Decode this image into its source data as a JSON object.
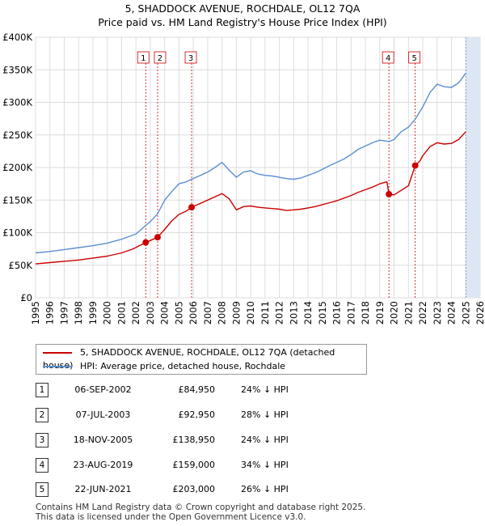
{
  "header": {
    "title_line1": "5, SHADDOCK AVENUE, ROCHDALE, OL12 7QA",
    "title_line2": "Price paid vs. HM Land Registry's House Price Index (HPI)"
  },
  "legend": {
    "series1": "5, SHADDOCK AVENUE, ROCHDALE, OL12 7QA (detached house)",
    "series2": "HPI: Average price, detached house, Rochdale"
  },
  "colors": {
    "price": "#cc0000",
    "hpi": "#5b8fd2",
    "shade": "#dde6f3",
    "grid": "#dddddd"
  },
  "transactions": [
    {
      "num": "1",
      "date": "06-SEP-2002",
      "price": "£84,950",
      "hpi": "24% ↓ HPI"
    },
    {
      "num": "2",
      "date": "07-JUL-2003",
      "price": "£92,950",
      "hpi": "28% ↓ HPI"
    },
    {
      "num": "3",
      "date": "18-NOV-2005",
      "price": "£138,950",
      "hpi": "24% ↓ HPI"
    },
    {
      "num": "4",
      "date": "23-AUG-2019",
      "price": "£159,000",
      "hpi": "34% ↓ HPI"
    },
    {
      "num": "5",
      "date": "22-JUN-2021",
      "price": "£203,000",
      "hpi": "26% ↓ HPI"
    }
  ],
  "footer": {
    "line1": "Contains HM Land Registry data © Crown copyright and database right 2025.",
    "line2": "This data is licensed under the Open Government Licence v3.0."
  },
  "chart_data": {
    "type": "line",
    "title": "5, SHADDOCK AVENUE, ROCHDALE, OL12 7QA — Price paid vs. HM Land Registry's House Price Index (HPI)",
    "xlim": [
      1995,
      2026
    ],
    "ylim": [
      0,
      400000
    ],
    "ytick_values": [
      0,
      50000,
      100000,
      150000,
      200000,
      250000,
      300000,
      350000,
      400000
    ],
    "ytick_labels": [
      "£0",
      "£50K",
      "£100K",
      "£150K",
      "£200K",
      "£250K",
      "£300K",
      "£350K",
      "£400K"
    ],
    "xtick_labels": [
      "1995",
      "1996",
      "1997",
      "1998",
      "1999",
      "2000",
      "2001",
      "2002",
      "2003",
      "2004",
      "2005",
      "2006",
      "2007",
      "2008",
      "2009",
      "2010",
      "2011",
      "2012",
      "2013",
      "2014",
      "2015",
      "2016",
      "2017",
      "2018",
      "2019",
      "2020",
      "2021",
      "2022",
      "2023",
      "2024",
      "2025",
      "2026"
    ],
    "future_shade_from": 2025.0,
    "series": [
      {
        "name": "5, SHADDOCK AVENUE, ROCHDALE, OL12 7QA (detached house)",
        "x": [
          1995.0,
          1996.0,
          1997.0,
          1998.0,
          1999.0,
          2000.0,
          2001.0,
          2001.8,
          2002.68,
          2003.0,
          2003.51,
          2004.0,
          2004.5,
          2005.0,
          2005.5,
          2005.88,
          2006.5,
          2007.0,
          2007.5,
          2008.0,
          2008.5,
          2009.0,
          2009.5,
          2010.0,
          2010.5,
          2011.0,
          2011.5,
          2012.0,
          2012.5,
          2013.0,
          2013.5,
          2014.0,
          2014.5,
          2015.0,
          2015.5,
          2016.0,
          2016.5,
          2017.0,
          2017.5,
          2018.0,
          2018.5,
          2019.0,
          2019.5,
          2019.64,
          2020.0,
          2020.5,
          2021.0,
          2021.47,
          2021.8,
          2022.0,
          2022.5,
          2023.0,
          2023.5,
          2024.0,
          2024.5,
          2025.0
        ],
        "y": [
          52000,
          54000,
          56000,
          58000,
          61000,
          64000,
          69000,
          75000,
          84950,
          88000,
          92950,
          105000,
          118000,
          128000,
          133000,
          138950,
          145000,
          150000,
          155000,
          160000,
          152000,
          135000,
          140000,
          141000,
          139000,
          138000,
          137000,
          136000,
          134000,
          135000,
          136000,
          138000,
          140000,
          143000,
          146000,
          149000,
          153000,
          157000,
          162000,
          166000,
          170000,
          175000,
          178000,
          159000,
          158000,
          165000,
          172000,
          203000,
          210000,
          218000,
          232000,
          238000,
          236000,
          237000,
          243000,
          255000
        ]
      },
      {
        "name": "HPI: Average price, detached house, Rochdale",
        "x": [
          1995.0,
          1996.0,
          1997.0,
          1998.0,
          1999.0,
          2000.0,
          2001.0,
          2002.0,
          2002.68,
          2003.0,
          2003.51,
          2004.0,
          2004.5,
          2005.0,
          2005.5,
          2005.88,
          2006.5,
          2007.0,
          2007.5,
          2008.0,
          2008.5,
          2009.0,
          2009.5,
          2010.0,
          2010.5,
          2011.0,
          2011.5,
          2012.0,
          2012.5,
          2013.0,
          2013.5,
          2014.0,
          2014.5,
          2015.0,
          2015.5,
          2016.0,
          2016.5,
          2017.0,
          2017.5,
          2018.0,
          2018.5,
          2019.0,
          2019.64,
          2020.0,
          2020.5,
          2021.0,
          2021.47,
          2022.0,
          2022.5,
          2023.0,
          2023.5,
          2024.0,
          2024.5,
          2025.0
        ],
        "y": [
          69000,
          71000,
          74000,
          77000,
          80000,
          84000,
          90000,
          98000,
          111000,
          117000,
          129000,
          150000,
          163000,
          175000,
          178000,
          182000,
          188000,
          193000,
          200000,
          208000,
          196000,
          185000,
          193000,
          195000,
          190000,
          188000,
          187000,
          185000,
          183000,
          182000,
          184000,
          188000,
          192000,
          197000,
          203000,
          208000,
          213000,
          220000,
          228000,
          233000,
          238000,
          242000,
          240000,
          243000,
          255000,
          262000,
          274000,
          293000,
          315000,
          328000,
          324000,
          323000,
          330000,
          345000
        ]
      }
    ],
    "annotations": [
      {
        "label": "1",
        "x": 2002.68,
        "y": 84950
      },
      {
        "label": "2",
        "x": 2003.51,
        "y": 92950
      },
      {
        "label": "3",
        "x": 2005.88,
        "y": 138950
      },
      {
        "label": "4",
        "x": 2019.64,
        "y": 159000
      },
      {
        "label": "5",
        "x": 2021.47,
        "y": 203000
      }
    ]
  }
}
